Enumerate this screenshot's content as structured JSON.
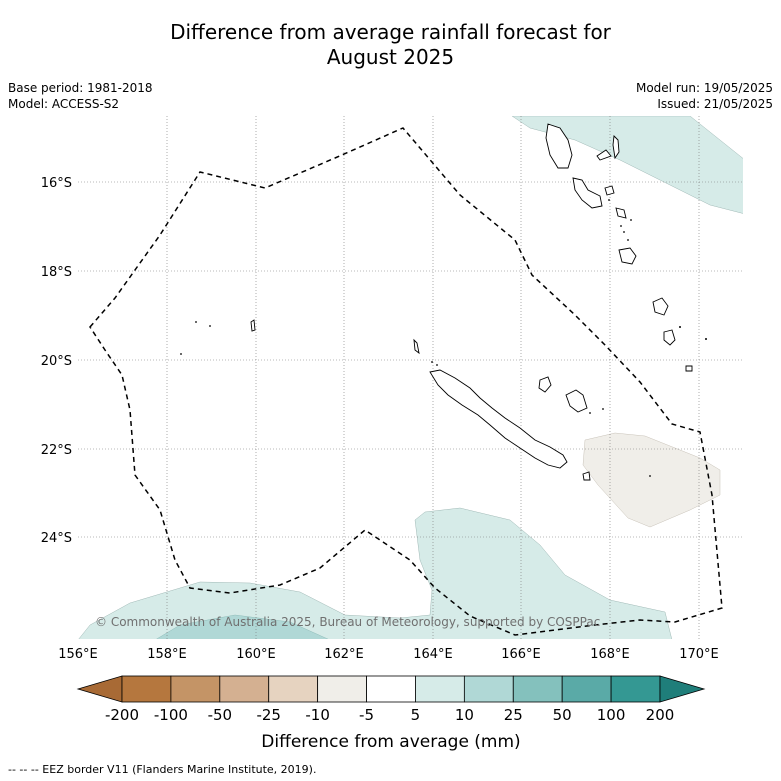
{
  "title_line1": "Difference from average rainfall forecast for",
  "title_line2": "August 2025",
  "base_period": "Base period: 1981-2018",
  "model": "Model: ACCESS-S2",
  "model_run": "Model run: 19/05/2025",
  "issued": "Issued: 21/05/2025",
  "copyright": "© Commonwealth of Australia 2025, Bureau of Meteorology, supported by COSPPac",
  "lat_labels": [
    "16°S",
    "18°S",
    "20°S",
    "22°S",
    "24°S"
  ],
  "lon_labels": [
    "156°E",
    "158°E",
    "160°E",
    "162°E",
    "164°E",
    "166°E",
    "168°E",
    "170°E"
  ],
  "colorbar": {
    "ticks": [
      "-200",
      "-100",
      "-50",
      "-25",
      "-10",
      "-5",
      "5",
      "10",
      "25",
      "50",
      "100",
      "200"
    ],
    "colors": [
      "#a86a35",
      "#b5773e",
      "#c49466",
      "#d4b091",
      "#e6d3c0",
      "#f0eee9",
      "#ffffff",
      "#d6ebe8",
      "#b0d8d6",
      "#84c1bd",
      "#5aaaa7",
      "#349893",
      "#1f7e7a"
    ],
    "label": "Difference from average (mm)"
  },
  "colors": {
    "wet_light": "#d6ebe8",
    "wet_mid": "#b0d8d6",
    "dry_light": "#f0eee9"
  },
  "footnote": "-- -- -- EEZ border V11 (Flanders Marine Institute, 2019)."
}
